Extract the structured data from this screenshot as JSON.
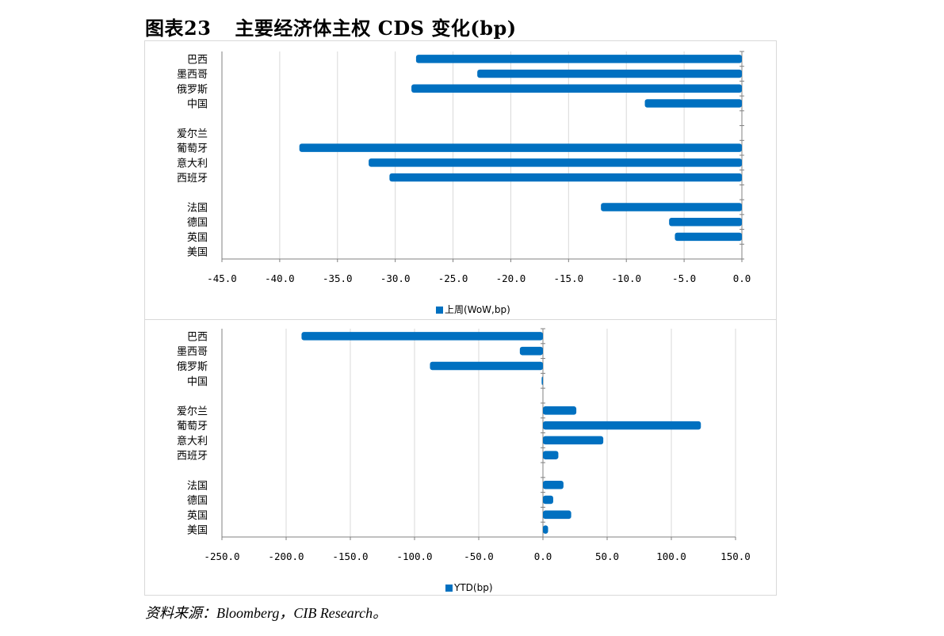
{
  "header": {
    "figure_no": "图表23",
    "title": "主要经济体主权 CDS 变化(bp)"
  },
  "source": "资料来源：Bloomberg，CIB Research。",
  "colors": {
    "bar": "#0070C0",
    "grid": "#d9d9d9",
    "axis": "#808080"
  },
  "chart_data": [
    {
      "type": "bar",
      "orientation": "horizontal",
      "categories": [
        "巴西",
        "墨西哥",
        "俄罗斯",
        "中国",
        "",
        "爱尔兰",
        "葡萄牙",
        "意大利",
        "西班牙",
        "",
        "法国",
        "德国",
        "英国",
        "美国"
      ],
      "series": [
        {
          "name": "上周(WoW,bp)",
          "values": [
            -28.2,
            -22.9,
            -28.6,
            -8.4,
            null,
            0,
            -38.3,
            -32.3,
            -30.5,
            null,
            -12.2,
            -6.3,
            -5.8,
            0
          ]
        }
      ],
      "xlim": [
        -45,
        0
      ],
      "xticks": [
        "-45.0",
        "-40.0",
        "-35.0",
        "-30.0",
        "-25.0",
        "-20.0",
        "-15.0",
        "-10.0",
        "-5.0",
        "0.0"
      ],
      "grid": "vertical",
      "legend": "bottom-center"
    },
    {
      "type": "bar",
      "orientation": "horizontal",
      "categories": [
        "巴西",
        "墨西哥",
        "俄罗斯",
        "中国",
        "",
        "爱尔兰",
        "葡萄牙",
        "意大利",
        "西班牙",
        "",
        "法国",
        "德国",
        "英国",
        "美国"
      ],
      "series": [
        {
          "name": "YTD(bp)",
          "values": [
            -188,
            -18,
            -88,
            -1,
            null,
            26,
            123,
            47,
            12,
            null,
            16,
            8,
            22,
            4
          ]
        }
      ],
      "xlim": [
        -250,
        150
      ],
      "xticks": [
        "-250.0",
        "-200.0",
        "-150.0",
        "-100.0",
        "-50.0",
        "0.0",
        "50.0",
        "100.0",
        "150.0"
      ],
      "grid": "vertical",
      "legend": "bottom-center"
    }
  ]
}
